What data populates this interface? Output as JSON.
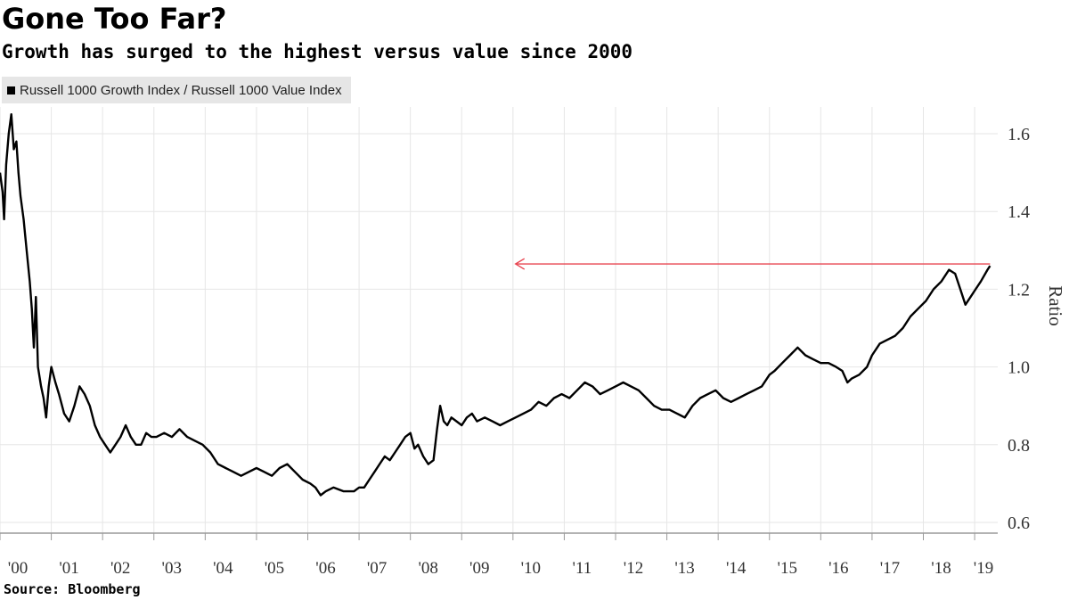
{
  "title": "Gone Too Far?",
  "subtitle": "Growth has surged to the highest versus value since 2000",
  "source": "Source: Bloomberg",
  "colors": {
    "series": "#000000",
    "arrow": "#e8434f",
    "grid": "#e6e6e6",
    "legend_bg": "#e6e6e6"
  },
  "chart_data": {
    "type": "line",
    "ylabel": "Ratio",
    "xlabel": "",
    "ylim": [
      0.6,
      1.66
    ],
    "y_ticks": [
      0.6,
      0.8,
      1.0,
      1.2,
      1.4,
      1.6
    ],
    "y_tick_labels": [
      "0.6",
      "0.8",
      "1.0",
      "1.2",
      "1.4",
      "1.6"
    ],
    "x_range": [
      2000.0,
      2019.45
    ],
    "x_ticks": [
      2000,
      2001,
      2002,
      2003,
      2004,
      2005,
      2006,
      2007,
      2008,
      2009,
      2010,
      2011,
      2012,
      2013,
      2014,
      2015,
      2016,
      2017,
      2018,
      2019
    ],
    "x_tick_labels": [
      "'00",
      "'01",
      "'02",
      "'03",
      "'04",
      "'05",
      "'06",
      "'07",
      "'08",
      "'09",
      "'10",
      "'11",
      "'12",
      "'13",
      "'14",
      "'15",
      "'16",
      "'17",
      "'18",
      "'19"
    ],
    "grid": true,
    "legend_position": "top-left",
    "series": [
      {
        "name": "Russell 1000 Growth Index / Russell 1000 Value Index",
        "points": [
          [
            2000.0,
            1.5
          ],
          [
            2000.05,
            1.45
          ],
          [
            2000.08,
            1.38
          ],
          [
            2000.12,
            1.52
          ],
          [
            2000.17,
            1.6
          ],
          [
            2000.22,
            1.65
          ],
          [
            2000.27,
            1.56
          ],
          [
            2000.32,
            1.58
          ],
          [
            2000.36,
            1.5
          ],
          [
            2000.4,
            1.44
          ],
          [
            2000.46,
            1.38
          ],
          [
            2000.52,
            1.3
          ],
          [
            2000.58,
            1.22
          ],
          [
            2000.62,
            1.15
          ],
          [
            2000.66,
            1.05
          ],
          [
            2000.7,
            1.18
          ],
          [
            2000.74,
            1.0
          ],
          [
            2000.8,
            0.95
          ],
          [
            2000.85,
            0.92
          ],
          [
            2000.9,
            0.87
          ],
          [
            2000.95,
            0.95
          ],
          [
            2001.0,
            1.0
          ],
          [
            2001.08,
            0.96
          ],
          [
            2001.15,
            0.93
          ],
          [
            2001.25,
            0.88
          ],
          [
            2001.35,
            0.86
          ],
          [
            2001.45,
            0.9
          ],
          [
            2001.55,
            0.95
          ],
          [
            2001.65,
            0.93
          ],
          [
            2001.75,
            0.9
          ],
          [
            2001.85,
            0.85
          ],
          [
            2001.95,
            0.82
          ],
          [
            2002.05,
            0.8
          ],
          [
            2002.15,
            0.78
          ],
          [
            2002.25,
            0.8
          ],
          [
            2002.35,
            0.82
          ],
          [
            2002.45,
            0.85
          ],
          [
            2002.55,
            0.82
          ],
          [
            2002.65,
            0.8
          ],
          [
            2002.75,
            0.8
          ],
          [
            2002.85,
            0.83
          ],
          [
            2002.95,
            0.82
          ],
          [
            2003.05,
            0.82
          ],
          [
            2003.2,
            0.83
          ],
          [
            2003.35,
            0.82
          ],
          [
            2003.5,
            0.84
          ],
          [
            2003.65,
            0.82
          ],
          [
            2003.8,
            0.81
          ],
          [
            2003.95,
            0.8
          ],
          [
            2004.1,
            0.78
          ],
          [
            2004.25,
            0.75
          ],
          [
            2004.4,
            0.74
          ],
          [
            2004.55,
            0.73
          ],
          [
            2004.7,
            0.72
          ],
          [
            2004.85,
            0.73
          ],
          [
            2005.0,
            0.74
          ],
          [
            2005.15,
            0.73
          ],
          [
            2005.3,
            0.72
          ],
          [
            2005.45,
            0.74
          ],
          [
            2005.6,
            0.75
          ],
          [
            2005.75,
            0.73
          ],
          [
            2005.9,
            0.71
          ],
          [
            2006.05,
            0.7
          ],
          [
            2006.15,
            0.69
          ],
          [
            2006.25,
            0.67
          ],
          [
            2006.35,
            0.68
          ],
          [
            2006.5,
            0.69
          ],
          [
            2006.7,
            0.68
          ],
          [
            2006.9,
            0.68
          ],
          [
            2007.0,
            0.69
          ],
          [
            2007.1,
            0.69
          ],
          [
            2007.2,
            0.71
          ],
          [
            2007.3,
            0.73
          ],
          [
            2007.4,
            0.75
          ],
          [
            2007.5,
            0.77
          ],
          [
            2007.6,
            0.76
          ],
          [
            2007.7,
            0.78
          ],
          [
            2007.8,
            0.8
          ],
          [
            2007.9,
            0.82
          ],
          [
            2008.0,
            0.83
          ],
          [
            2008.08,
            0.79
          ],
          [
            2008.15,
            0.8
          ],
          [
            2008.25,
            0.77
          ],
          [
            2008.35,
            0.75
          ],
          [
            2008.45,
            0.76
          ],
          [
            2008.52,
            0.84
          ],
          [
            2008.58,
            0.9
          ],
          [
            2008.65,
            0.86
          ],
          [
            2008.72,
            0.85
          ],
          [
            2008.8,
            0.87
          ],
          [
            2008.9,
            0.86
          ],
          [
            2009.0,
            0.85
          ],
          [
            2009.1,
            0.87
          ],
          [
            2009.2,
            0.88
          ],
          [
            2009.3,
            0.86
          ],
          [
            2009.45,
            0.87
          ],
          [
            2009.6,
            0.86
          ],
          [
            2009.75,
            0.85
          ],
          [
            2009.9,
            0.86
          ],
          [
            2010.05,
            0.87
          ],
          [
            2010.2,
            0.88
          ],
          [
            2010.35,
            0.89
          ],
          [
            2010.5,
            0.91
          ],
          [
            2010.65,
            0.9
          ],
          [
            2010.8,
            0.92
          ],
          [
            2010.95,
            0.93
          ],
          [
            2011.1,
            0.92
          ],
          [
            2011.25,
            0.94
          ],
          [
            2011.4,
            0.96
          ],
          [
            2011.55,
            0.95
          ],
          [
            2011.7,
            0.93
          ],
          [
            2011.85,
            0.94
          ],
          [
            2012.0,
            0.95
          ],
          [
            2012.15,
            0.96
          ],
          [
            2012.3,
            0.95
          ],
          [
            2012.45,
            0.94
          ],
          [
            2012.6,
            0.92
          ],
          [
            2012.75,
            0.9
          ],
          [
            2012.9,
            0.89
          ],
          [
            2013.05,
            0.89
          ],
          [
            2013.2,
            0.88
          ],
          [
            2013.35,
            0.87
          ],
          [
            2013.5,
            0.9
          ],
          [
            2013.65,
            0.92
          ],
          [
            2013.8,
            0.93
          ],
          [
            2013.95,
            0.94
          ],
          [
            2014.1,
            0.92
          ],
          [
            2014.25,
            0.91
          ],
          [
            2014.4,
            0.92
          ],
          [
            2014.55,
            0.93
          ],
          [
            2014.7,
            0.94
          ],
          [
            2014.85,
            0.95
          ],
          [
            2015.0,
            0.98
          ],
          [
            2015.1,
            0.99
          ],
          [
            2015.25,
            1.01
          ],
          [
            2015.4,
            1.03
          ],
          [
            2015.55,
            1.05
          ],
          [
            2015.7,
            1.03
          ],
          [
            2015.85,
            1.02
          ],
          [
            2016.0,
            1.01
          ],
          [
            2016.15,
            1.01
          ],
          [
            2016.3,
            1.0
          ],
          [
            2016.42,
            0.99
          ],
          [
            2016.52,
            0.96
          ],
          [
            2016.6,
            0.97
          ],
          [
            2016.75,
            0.98
          ],
          [
            2016.9,
            1.0
          ],
          [
            2017.0,
            1.03
          ],
          [
            2017.15,
            1.06
          ],
          [
            2017.3,
            1.07
          ],
          [
            2017.45,
            1.08
          ],
          [
            2017.6,
            1.1
          ],
          [
            2017.75,
            1.13
          ],
          [
            2017.9,
            1.15
          ],
          [
            2018.05,
            1.17
          ],
          [
            2018.2,
            1.2
          ],
          [
            2018.35,
            1.22
          ],
          [
            2018.5,
            1.25
          ],
          [
            2018.62,
            1.24
          ],
          [
            2018.72,
            1.2
          ],
          [
            2018.82,
            1.16
          ],
          [
            2018.92,
            1.18
          ],
          [
            2019.02,
            1.2
          ],
          [
            2019.12,
            1.22
          ],
          [
            2019.25,
            1.25
          ],
          [
            2019.3,
            1.26
          ]
        ]
      }
    ],
    "annotations": [
      {
        "type": "arrow",
        "y": 1.265,
        "x_from": 2019.3,
        "x_to": 2010.05,
        "color": "#e8434f"
      }
    ]
  }
}
